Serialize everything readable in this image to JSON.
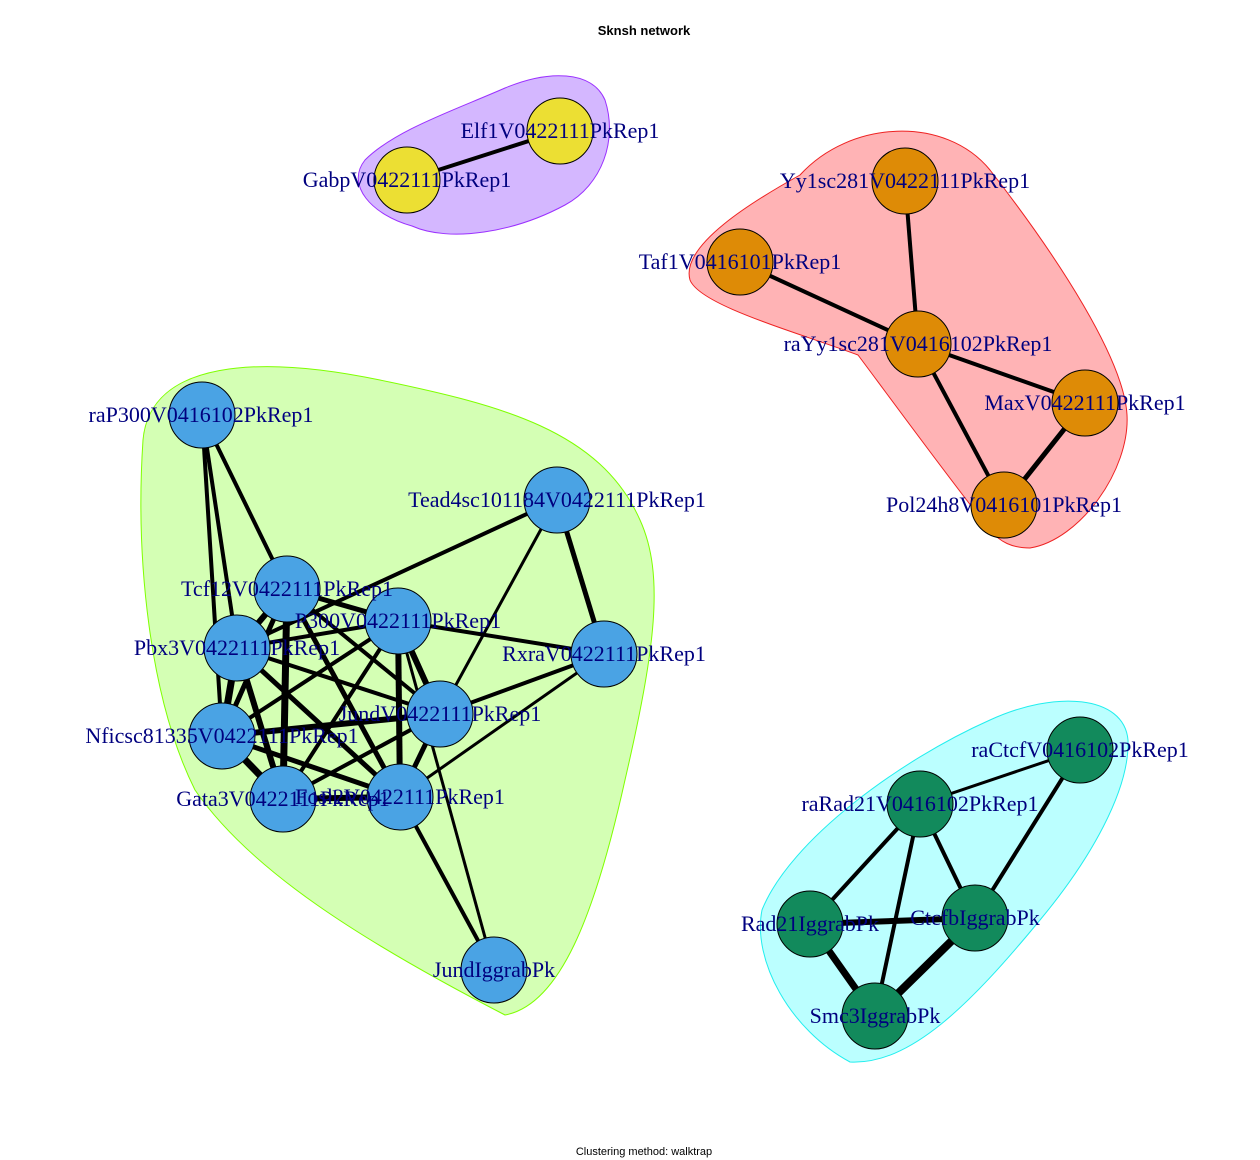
{
  "title": "Sknsh network",
  "subtitle": "Clustering method: walktrap",
  "colors": {
    "label": "#00007f",
    "edge": "#000000"
  },
  "clusters": [
    {
      "id": "c1",
      "fill": "#d4b7ff",
      "stroke": "#9b30ff",
      "node_color": "#ecdf33"
    },
    {
      "id": "c2",
      "fill": "#ffb3b5",
      "stroke": "#ee2222",
      "node_color": "#de8b06"
    },
    {
      "id": "c3",
      "fill": "#d4ffb4",
      "stroke": "#7fff00",
      "node_color": "#4aa3e4"
    },
    {
      "id": "c4",
      "fill": "#bbffff",
      "stroke": "#22eeee",
      "node_color": "#128a5c"
    }
  ],
  "nodes": [
    {
      "id": "elf1",
      "label": "Elf1V0422111PkRep1",
      "cluster": "c1"
    },
    {
      "id": "gabp",
      "label": "GabpV0422111PkRep1",
      "cluster": "c1"
    },
    {
      "id": "yy1",
      "label": "Yy1sc281V0422111PkRep1",
      "cluster": "c2"
    },
    {
      "id": "taf1",
      "label": "Taf1V0416101PkRep1",
      "cluster": "c2"
    },
    {
      "id": "rayy1",
      "label": "raYy1sc281V0416102PkRep1",
      "cluster": "c2"
    },
    {
      "id": "max",
      "label": "MaxV0422111PkRep1",
      "cluster": "c2"
    },
    {
      "id": "pol2",
      "label": "Pol24h8V0416101PkRep1",
      "cluster": "c2"
    },
    {
      "id": "rap300",
      "label": "raP300V0416102PkRep1",
      "cluster": "c3"
    },
    {
      "id": "tead4",
      "label": "Tead4sc101184V0422111PkRep1",
      "cluster": "c3"
    },
    {
      "id": "tcf12",
      "label": "Tcf12V0422111PkRep1",
      "cluster": "c3"
    },
    {
      "id": "p300",
      "label": "P300V0422111PkRep1",
      "cluster": "c3"
    },
    {
      "id": "pbx3",
      "label": "Pbx3V0422111PkRep1",
      "cluster": "c3"
    },
    {
      "id": "rxra",
      "label": "RxraV0422111PkRep1",
      "cluster": "c3"
    },
    {
      "id": "nfic",
      "label": "Nficsc81335V0422111PkRep1",
      "cluster": "c3"
    },
    {
      "id": "jund",
      "label": "JundV0422111PkRep1",
      "cluster": "c3"
    },
    {
      "id": "gata3",
      "label": "Gata3V0422111PkRep1",
      "cluster": "c3"
    },
    {
      "id": "fosl2",
      "label": "Fosl2V0422111PkRep1",
      "cluster": "c3"
    },
    {
      "id": "jundigg",
      "label": "JundIggrabPk",
      "cluster": "c3"
    },
    {
      "id": "ractcf",
      "label": "raCtcfV0416102PkRep1",
      "cluster": "c4"
    },
    {
      "id": "rarad21",
      "label": "raRad21V0416102PkRep1",
      "cluster": "c4"
    },
    {
      "id": "rad21",
      "label": "Rad21IggrabPk",
      "cluster": "c4"
    },
    {
      "id": "ctcfb",
      "label": "CtcfbIggrabPk",
      "cluster": "c4"
    },
    {
      "id": "smc3",
      "label": "Smc3IggrabPk",
      "cluster": "c4"
    }
  ],
  "edges": [
    {
      "source": "gabp",
      "target": "elf1",
      "weight": 4
    },
    {
      "source": "yy1",
      "target": "rayy1",
      "weight": 4
    },
    {
      "source": "taf1",
      "target": "rayy1",
      "weight": 4
    },
    {
      "source": "rayy1",
      "target": "max",
      "weight": 4
    },
    {
      "source": "rayy1",
      "target": "pol2",
      "weight": 4
    },
    {
      "source": "max",
      "target": "pol2",
      "weight": 5
    },
    {
      "source": "rap300",
      "target": "tcf12",
      "weight": 4
    },
    {
      "source": "rap300",
      "target": "pbx3",
      "weight": 4
    },
    {
      "source": "rap300",
      "target": "nfic",
      "weight": 4
    },
    {
      "source": "tead4",
      "target": "pbx3",
      "weight": 4
    },
    {
      "source": "tead4",
      "target": "jund",
      "weight": 3
    },
    {
      "source": "tead4",
      "target": "rxra",
      "weight": 5
    },
    {
      "source": "tcf12",
      "target": "p300",
      "weight": 5
    },
    {
      "source": "tcf12",
      "target": "pbx3",
      "weight": 6
    },
    {
      "source": "tcf12",
      "target": "nfic",
      "weight": 5
    },
    {
      "source": "tcf12",
      "target": "gata3",
      "weight": 7
    },
    {
      "source": "tcf12",
      "target": "fosl2",
      "weight": 5
    },
    {
      "source": "tcf12",
      "target": "jund",
      "weight": 4
    },
    {
      "source": "p300",
      "target": "pbx3",
      "weight": 4
    },
    {
      "source": "p300",
      "target": "rxra",
      "weight": 4
    },
    {
      "source": "p300",
      "target": "jund",
      "weight": 6
    },
    {
      "source": "p300",
      "target": "nfic",
      "weight": 4
    },
    {
      "source": "p300",
      "target": "gata3",
      "weight": 4
    },
    {
      "source": "p300",
      "target": "fosl2",
      "weight": 6
    },
    {
      "source": "pbx3",
      "target": "nfic",
      "weight": 7
    },
    {
      "source": "pbx3",
      "target": "gata3",
      "weight": 6
    },
    {
      "source": "pbx3",
      "target": "fosl2",
      "weight": 5
    },
    {
      "source": "pbx3",
      "target": "jund",
      "weight": 4
    },
    {
      "source": "nfic",
      "target": "gata3",
      "weight": 7
    },
    {
      "source": "nfic",
      "target": "fosl2",
      "weight": 5
    },
    {
      "source": "nfic",
      "target": "jund",
      "weight": 6
    },
    {
      "source": "gata3",
      "target": "fosl2",
      "weight": 6
    },
    {
      "source": "gata3",
      "target": "jund",
      "weight": 4
    },
    {
      "source": "fosl2",
      "target": "jund",
      "weight": 5
    },
    {
      "source": "jund",
      "target": "rxra",
      "weight": 4
    },
    {
      "source": "fosl2",
      "target": "rxra",
      "weight": 3
    },
    {
      "source": "fosl2",
      "target": "jundigg",
      "weight": 4
    },
    {
      "source": "p300",
      "target": "jundigg",
      "weight": 3
    },
    {
      "source": "ractcf",
      "target": "rarad21",
      "weight": 3
    },
    {
      "source": "ractcf",
      "target": "ctcfb",
      "weight": 4
    },
    {
      "source": "rarad21",
      "target": "rad21",
      "weight": 4
    },
    {
      "source": "rarad21",
      "target": "ctcfb",
      "weight": 4
    },
    {
      "source": "rarad21",
      "target": "smc3",
      "weight": 4
    },
    {
      "source": "rad21",
      "target": "ctcfb",
      "weight": 6
    },
    {
      "source": "rad21",
      "target": "smc3",
      "weight": 7
    },
    {
      "source": "ctcfb",
      "target": "smc3",
      "weight": 8
    }
  ]
}
